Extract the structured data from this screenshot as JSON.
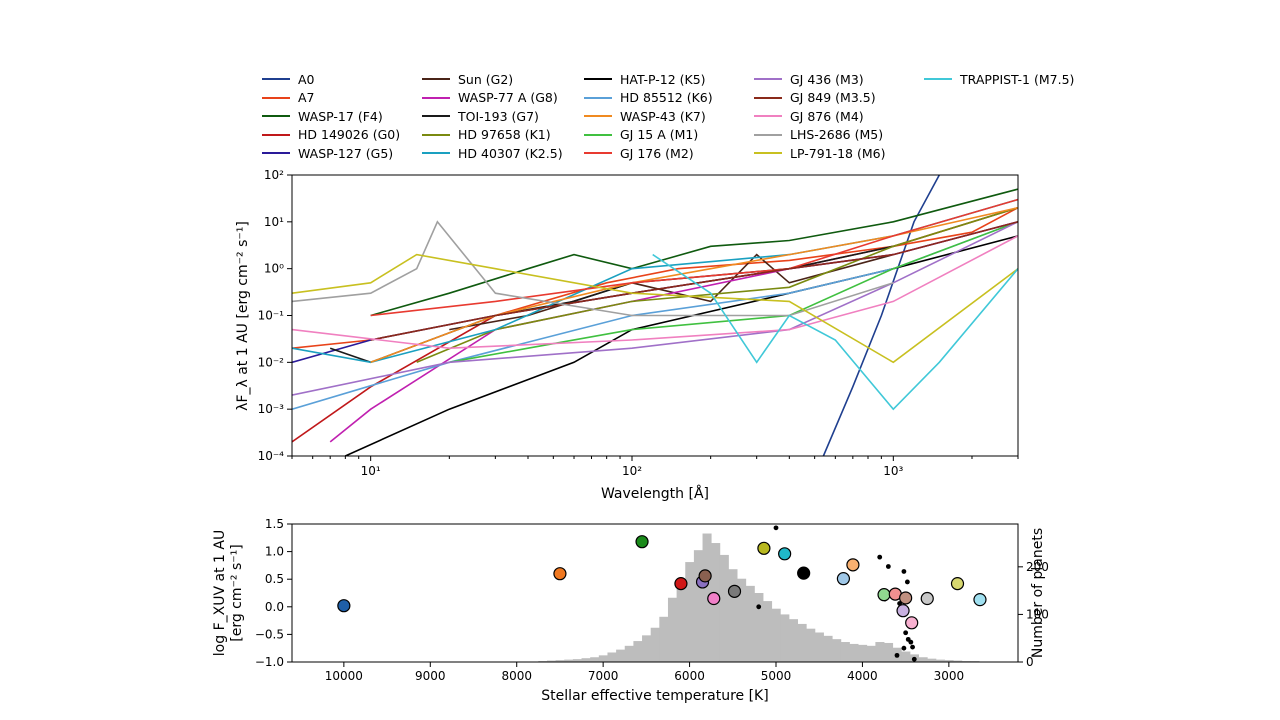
{
  "figure": {
    "top": {
      "xlabel": "Wavelength [Å]",
      "ylabel": "λF_λ at 1 AU [erg cm⁻² s⁻¹]",
      "xscale": "log",
      "yscale": "log",
      "xlim": [
        5,
        3000
      ],
      "ylim": [
        0.0001,
        100
      ],
      "x_ticks": [
        "10¹",
        "10²",
        "10³"
      ],
      "y_ticks": [
        "10⁻⁴",
        "10⁻³",
        "10⁻²",
        "10⁻¹",
        "10⁰",
        "10¹",
        "10²"
      ]
    },
    "bottom": {
      "xlabel": "Stellar effective temperature [K]",
      "ylabel_line1": "log F_XUV at 1 AU",
      "ylabel_line2": "[erg cm⁻² s⁻¹]",
      "ylabel_right": "Number of planets",
      "x_ticks": [
        "10000",
        "9000",
        "8000",
        "7000",
        "6000",
        "5000",
        "4000",
        "3000"
      ],
      "y_ticks": [
        "−1.0",
        "−0.5",
        "0.0",
        "0.5",
        "1.0",
        "1.5"
      ],
      "y_right_ticks": [
        "0",
        "100",
        "200"
      ]
    }
  },
  "legend": [
    {
      "label": "A0",
      "color": "#1f3f8f"
    },
    {
      "label": "A7",
      "color": "#e8431a"
    },
    {
      "label": "WASP-17 (F4)",
      "color": "#0f5a0f"
    },
    {
      "label": "HD 149026 (G0)",
      "color": "#c0181a"
    },
    {
      "label": "WASP-127 (G5)",
      "color": "#2a1a99"
    },
    {
      "label": "Sun (G2)",
      "color": "#4a2418"
    },
    {
      "label": "WASP-77 A (G8)",
      "color": "#c020b0"
    },
    {
      "label": "TOI-193 (G7)",
      "color": "#1a1a1a"
    },
    {
      "label": "HD 97658 (K1)",
      "color": "#7a8a10"
    },
    {
      "label": "HD 40307 (K2.5)",
      "color": "#1aa0c0"
    },
    {
      "label": "HAT-P-12 (K5)",
      "color": "#000000"
    },
    {
      "label": "HD 85512 (K6)",
      "color": "#5aa0d8"
    },
    {
      "label": "WASP-43 (K7)",
      "color": "#f08a20"
    },
    {
      "label": "GJ 15 A (M1)",
      "color": "#40c040"
    },
    {
      "label": "GJ 176 (M2)",
      "color": "#e83a30"
    },
    {
      "label": "GJ 436 (M3)",
      "color": "#a070c8"
    },
    {
      "label": "GJ 849 (M3.5)",
      "color": "#8a2a1a"
    },
    {
      "label": "GJ 876 (M4)",
      "color": "#f080c0"
    },
    {
      "label": "LHS-2686 (M5)",
      "color": "#a0a0a0"
    },
    {
      "label": "LP-791-18 (M6)",
      "color": "#c8c020"
    },
    {
      "label": "TRAPPIST-1 (M7.5)",
      "color": "#40c8d8"
    }
  ],
  "chart_data": [
    {
      "type": "line",
      "xlabel": "Wavelength [Å]",
      "ylabel": "λF_λ at 1 AU [erg cm⁻² s⁻¹]",
      "xscale": "log",
      "yscale": "log",
      "xlim": [
        5,
        3000
      ],
      "ylim": [
        0.0001,
        100
      ],
      "series": [
        {
          "name": "A0",
          "color": "#1f3f8f",
          "x": [
            540,
            700,
            900,
            1200,
            1500
          ],
          "y": [
            0.0001,
            0.003,
            0.1,
            10,
            100
          ]
        },
        {
          "name": "A7",
          "color": "#e8431a",
          "x": [
            5,
            10,
            30,
            80,
            150,
            400,
            1000,
            2000,
            3000
          ],
          "y": [
            0.02,
            0.03,
            0.1,
            0.5,
            1,
            1.5,
            3,
            6,
            20
          ]
        },
        {
          "name": "WASP-17 (F4)",
          "color": "#0f5a0f",
          "x": [
            10,
            20,
            40,
            60,
            100,
            200,
            400,
            1000,
            3000
          ],
          "y": [
            0.1,
            0.3,
            1,
            2,
            1,
            3,
            4,
            10,
            50
          ]
        },
        {
          "name": "HD 149026 (G0)",
          "color": "#c0181a",
          "x": [
            5,
            10,
            30,
            100,
            400,
            1000,
            3000
          ],
          "y": [
            0.0002,
            0.003,
            0.1,
            0.3,
            1,
            3,
            20
          ]
        },
        {
          "name": "WASP-127 (G5)",
          "color": "#2a1a99",
          "x": [
            5,
            10,
            30,
            100,
            400,
            1000,
            3000
          ],
          "y": [
            0.01,
            0.03,
            0.1,
            0.3,
            1,
            2,
            10
          ]
        },
        {
          "name": "Sun (G2)",
          "color": "#4a2418",
          "x": [
            20,
            40,
            100,
            200,
            300,
            400,
            1000
          ],
          "y": [
            0.05,
            0.1,
            0.5,
            0.2,
            2,
            0.5,
            2
          ]
        },
        {
          "name": "WASP-77 A (G8)",
          "color": "#c020b0",
          "x": [
            7,
            10,
            30,
            100,
            400,
            1000,
            3000
          ],
          "y": [
            0.0002,
            0.001,
            0.05,
            0.2,
            1,
            2,
            10
          ]
        },
        {
          "name": "TOI-193 (G7)",
          "color": "#1a1a1a",
          "x": [
            7,
            10,
            30,
            60,
            100,
            400,
            1000
          ],
          "y": [
            0.02,
            0.01,
            0.1,
            0.2,
            0.5,
            1,
            3
          ]
        },
        {
          "name": "HD 97658 (K1)",
          "color": "#7a8a10",
          "x": [
            15,
            30,
            100,
            400,
            1000,
            3000
          ],
          "y": [
            0.01,
            0.05,
            0.2,
            0.4,
            3,
            20
          ]
        },
        {
          "name": "HD 40307 (K2.5)",
          "color": "#1aa0c0",
          "x": [
            5,
            10,
            30,
            100,
            400,
            1000,
            3000
          ],
          "y": [
            0.02,
            0.01,
            0.05,
            1,
            2,
            5,
            30
          ]
        },
        {
          "name": "HAT-P-12 (K5)",
          "color": "#000000",
          "x": [
            8,
            20,
            60,
            100,
            400,
            1000,
            3000
          ],
          "y": [
            0.0001,
            0.001,
            0.01,
            0.05,
            0.3,
            1,
            5
          ]
        },
        {
          "name": "HD 85512 (K6)",
          "color": "#5aa0d8",
          "x": [
            5,
            20,
            100,
            400,
            1000,
            3000
          ],
          "y": [
            0.001,
            0.01,
            0.1,
            0.3,
            1,
            10
          ]
        },
        {
          "name": "WASP-43 (K7)",
          "color": "#f08a20",
          "x": [
            10,
            30,
            100,
            200,
            400,
            1000,
            3000
          ],
          "y": [
            0.01,
            0.1,
            0.5,
            1,
            2,
            5,
            20
          ]
        },
        {
          "name": "GJ 15 A (M1)",
          "color": "#40c040",
          "x": [
            20,
            40,
            100,
            400,
            1000,
            3000
          ],
          "y": [
            0.01,
            0.02,
            0.05,
            0.1,
            1,
            10
          ]
        },
        {
          "name": "GJ 176 (M2)",
          "color": "#e83a30",
          "x": [
            10,
            30,
            100,
            400,
            1000,
            3000
          ],
          "y": [
            0.1,
            0.2,
            0.5,
            1,
            5,
            30
          ]
        },
        {
          "name": "GJ 436 (M3)",
          "color": "#a070c8",
          "x": [
            5,
            20,
            100,
            400,
            1000,
            3000
          ],
          "y": [
            0.002,
            0.01,
            0.02,
            0.05,
            0.5,
            10
          ]
        },
        {
          "name": "GJ 849 (M3.5)",
          "color": "#8a2a1a",
          "x": [
            10,
            30,
            100,
            400,
            1000,
            3000
          ],
          "y": [
            0.03,
            0.1,
            0.3,
            1,
            2,
            10
          ]
        },
        {
          "name": "GJ 876 (M4)",
          "color": "#f080c0",
          "x": [
            5,
            20,
            100,
            400,
            1000,
            3000
          ],
          "y": [
            0.05,
            0.02,
            0.03,
            0.05,
            0.2,
            5
          ]
        },
        {
          "name": "LHS-2686 (M5)",
          "color": "#a0a0a0",
          "x": [
            5,
            10,
            15,
            18,
            30,
            100,
            400,
            1000
          ],
          "y": [
            0.2,
            0.3,
            1,
            10,
            0.3,
            0.1,
            0.1,
            0.5
          ]
        },
        {
          "name": "LP-791-18 (M6)",
          "color": "#c8c020",
          "x": [
            5,
            10,
            15,
            30,
            100,
            400,
            1000,
            3000
          ],
          "y": [
            0.3,
            0.5,
            2,
            1,
            0.3,
            0.2,
            0.01,
            1
          ]
        },
        {
          "name": "TRAPPIST-1 (M7.5)",
          "color": "#40c8d8",
          "x": [
            120,
            200,
            300,
            400,
            600,
            1000,
            1500,
            3000
          ],
          "y": [
            2,
            0.3,
            0.01,
            0.1,
            0.03,
            0.001,
            0.01,
            1
          ]
        }
      ]
    },
    {
      "type": "scatter",
      "xlabel": "Stellar effective temperature [K]",
      "ylabel": "log F_XUV at 1 AU [erg cm⁻² s⁻¹]",
      "y2label": "Number of planets",
      "xlim": [
        10600,
        2200
      ],
      "ylim": [
        -1.0,
        1.5
      ],
      "y2lim": [
        0,
        290
      ],
      "stars": [
        {
          "teff": 10000,
          "logF": 0.02,
          "color": "#1f5fa8"
        },
        {
          "teff": 7500,
          "logF": 0.6,
          "color": "#f07820"
        },
        {
          "teff": 6550,
          "logF": 1.18,
          "color": "#1a8a1a"
        },
        {
          "teff": 6100,
          "logF": 0.42,
          "color": "#d01818"
        },
        {
          "teff": 5850,
          "logF": 0.45,
          "color": "#8a70c0"
        },
        {
          "teff": 5820,
          "logF": 0.56,
          "color": "#8a6050"
        },
        {
          "teff": 5720,
          "logF": 0.15,
          "color": "#f080c8"
        },
        {
          "teff": 5480,
          "logF": 0.28,
          "color": "#7a7a7a"
        },
        {
          "teff": 5140,
          "logF": 1.06,
          "color": "#b8b820"
        },
        {
          "teff": 4900,
          "logF": 0.96,
          "color": "#20b8c8"
        },
        {
          "teff": 4680,
          "logF": 0.61,
          "color": "#000000"
        },
        {
          "teff": 4220,
          "logF": 0.51,
          "color": "#a0c8e8"
        },
        {
          "teff": 4110,
          "logF": 0.76,
          "color": "#f8b070"
        },
        {
          "teff": 3750,
          "logF": 0.22,
          "color": "#90d890"
        },
        {
          "teff": 3620,
          "logF": 0.23,
          "color": "#f09090"
        },
        {
          "teff": 3530,
          "logF": -0.07,
          "color": "#c8b0e0"
        },
        {
          "teff": 3500,
          "logF": 0.16,
          "color": "#c09080"
        },
        {
          "teff": 3430,
          "logF": -0.29,
          "color": "#f8b0d0"
        },
        {
          "teff": 3250,
          "logF": 0.15,
          "color": "#c8c8c8"
        },
        {
          "teff": 2900,
          "logF": 0.42,
          "color": "#d8d870"
        },
        {
          "teff": 2640,
          "logF": 0.13,
          "color": "#a0e0f0"
        }
      ],
      "planet_dots": [
        {
          "teff": 5000,
          "logF": 1.43
        },
        {
          "teff": 5200,
          "logF": 0.0
        },
        {
          "teff": 3800,
          "logF": 0.9
        },
        {
          "teff": 3700,
          "logF": 0.73
        },
        {
          "teff": 3520,
          "logF": 0.64
        },
        {
          "teff": 3480,
          "logF": 0.45
        },
        {
          "teff": 3740,
          "logF": 0.14
        },
        {
          "teff": 3570,
          "logF": 0.06
        },
        {
          "teff": 3500,
          "logF": -0.47
        },
        {
          "teff": 3470,
          "logF": -0.59
        },
        {
          "teff": 3440,
          "logF": -0.64
        },
        {
          "teff": 3520,
          "logF": -0.75
        },
        {
          "teff": 3420,
          "logF": -0.73
        },
        {
          "teff": 3600,
          "logF": -0.88
        },
        {
          "teff": 3400,
          "logF": -0.95
        }
      ],
      "histogram": {
        "bin_width": 100,
        "bins": [
          [
            7700,
            2
          ],
          [
            7600,
            3
          ],
          [
            7500,
            4
          ],
          [
            7400,
            5
          ],
          [
            7300,
            6
          ],
          [
            7200,
            8
          ],
          [
            7100,
            10
          ],
          [
            7000,
            14
          ],
          [
            6900,
            20
          ],
          [
            6800,
            26
          ],
          [
            6700,
            34
          ],
          [
            6600,
            44
          ],
          [
            6500,
            56
          ],
          [
            6400,
            72
          ],
          [
            6300,
            95
          ],
          [
            6200,
            135
          ],
          [
            6100,
            175
          ],
          [
            6000,
            210
          ],
          [
            5900,
            235
          ],
          [
            5800,
            270
          ],
          [
            5700,
            250
          ],
          [
            5600,
            225
          ],
          [
            5500,
            195
          ],
          [
            5400,
            175
          ],
          [
            5300,
            160
          ],
          [
            5200,
            145
          ],
          [
            5100,
            128
          ],
          [
            5000,
            112
          ],
          [
            4900,
            100
          ],
          [
            4800,
            90
          ],
          [
            4700,
            80
          ],
          [
            4600,
            70
          ],
          [
            4500,
            62
          ],
          [
            4400,
            55
          ],
          [
            4300,
            48
          ],
          [
            4200,
            42
          ],
          [
            4100,
            38
          ],
          [
            4000,
            36
          ],
          [
            3900,
            34
          ],
          [
            3800,
            42
          ],
          [
            3700,
            40
          ],
          [
            3600,
            30
          ],
          [
            3500,
            22
          ],
          [
            3400,
            16
          ],
          [
            3300,
            10
          ],
          [
            3200,
            7
          ],
          [
            3100,
            5
          ],
          [
            3000,
            4
          ],
          [
            2900,
            3
          ],
          [
            2800,
            2
          ],
          [
            2700,
            2
          ],
          [
            2600,
            1
          ],
          [
            2500,
            1
          ]
        ]
      }
    }
  ]
}
